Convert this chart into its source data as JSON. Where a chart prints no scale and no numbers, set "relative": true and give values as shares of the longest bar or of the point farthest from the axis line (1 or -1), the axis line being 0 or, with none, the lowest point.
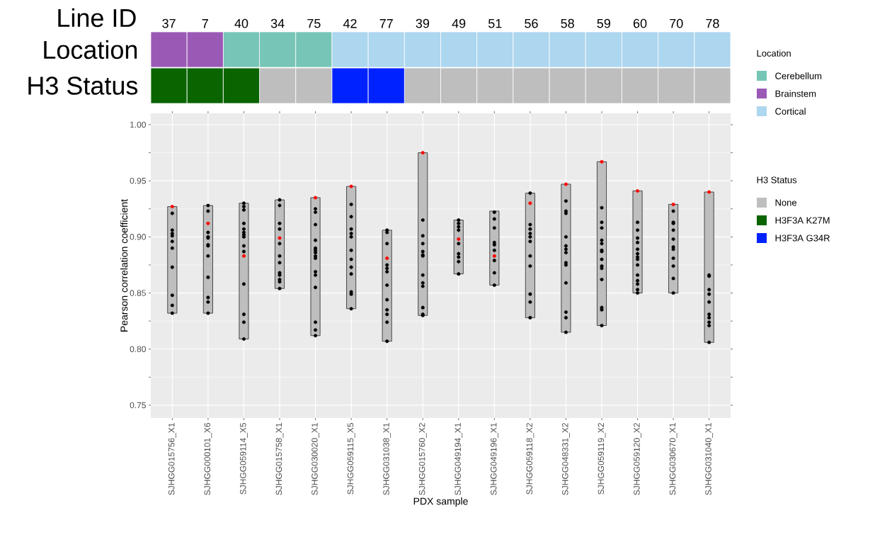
{
  "chart_data": [
    {
      "type": "bar",
      "relative": true,
      "x2label": "Line ID",
      "ylabel": "Location",
      "categories": [
        "37",
        "7",
        "40",
        "34",
        "75",
        "42",
        "77",
        "39",
        "49",
        "51",
        "56",
        "58",
        "59",
        "60",
        "70",
        "78"
      ],
      "legend": "right",
      "legend_title": "Location",
      "series": [
        {
          "name": "Cerebellum",
          "color": "#76c5b6",
          "values": [
            null,
            null,
            1,
            1,
            1,
            null,
            null,
            null,
            null,
            null,
            null,
            null,
            null,
            null,
            null,
            null
          ]
        },
        {
          "name": "Brainstem",
          "color": "#9b59b6",
          "values": [
            1,
            1,
            null,
            null,
            null,
            null,
            null,
            null,
            null,
            null,
            null,
            null,
            null,
            null,
            null,
            null
          ]
        },
        {
          "name": "Cortical",
          "color": "#add6ef",
          "values": [
            null,
            null,
            null,
            null,
            null,
            1,
            1,
            1,
            1,
            1,
            1,
            1,
            1,
            1,
            1,
            1
          ]
        }
      ]
    },
    {
      "type": "bar",
      "relative": true,
      "tick_labels": false,
      "ylabel": "H3 Status",
      "categories": [
        "37",
        "7",
        "40",
        "34",
        "75",
        "42",
        "77",
        "39",
        "49",
        "51",
        "56",
        "58",
        "59",
        "60",
        "70",
        "78"
      ],
      "legend": "right",
      "legend_title": "H3 Status",
      "series": [
        {
          "name": "None",
          "color": "#bebebe",
          "values": [
            null,
            null,
            null,
            1,
            1,
            null,
            null,
            1,
            1,
            1,
            1,
            1,
            1,
            1,
            1,
            1
          ]
        },
        {
          "name": "H3F3A K27M",
          "color": "#0a6400",
          "values": [
            1,
            1,
            1,
            null,
            null,
            null,
            null,
            null,
            null,
            null,
            null,
            null,
            null,
            null,
            null,
            null
          ]
        },
        {
          "name": "H3F3A G34R",
          "color": "#0022ff",
          "values": [
            null,
            null,
            null,
            null,
            null,
            1,
            1,
            null,
            null,
            null,
            null,
            null,
            null,
            null,
            null,
            null
          ]
        }
      ]
    },
    {
      "type": "bar",
      "xlabel": "PDX sample",
      "ylabel": "Pearson correlation coefficient",
      "grid": true,
      "categories": [
        "SJHGG015756_X1",
        "SJHGG000101_X6",
        "SJHGG059114_X5",
        "SJHGG015758_X1",
        "SJHGG030020_X1",
        "SJHGG059115_X5",
        "SJHGG031038_X1",
        "SJHGG015760_X2",
        "SJHGG049194_X1",
        "SJHGG049196_X1",
        "SJHGG059118_X2",
        "SJHGG048331_X2",
        "SJHGG059119_X2",
        "SJHGG059120_X2",
        "SJHGG030670_X1",
        "SJHGG031040_X1"
      ],
      "ylim": [
        0.7386,
        1.0101
      ],
      "yticks": [
        0.75,
        {
          "value": 0.8,
          "label": "0.80"
        },
        0.85,
        {
          "value": 0.9,
          "label": "0.90"
        },
        0.95,
        {
          "value": 1.0,
          "label": "1.00"
        }
      ],
      "series": [
        {
          "type": "bar",
          "color": "#bebebe",
          "base": [
            0.832,
            0.832,
            0.809,
            0.854,
            0.812,
            0.836,
            0.807,
            0.83,
            0.867,
            0.857,
            0.828,
            0.815,
            0.821,
            0.85,
            0.85,
            0.806
          ],
          "values": [
            0.095,
            0.096,
            0.121,
            0.079,
            0.123,
            0.109,
            0.099,
            0.145,
            0.048,
            0.066,
            0.111,
            0.132,
            0.146,
            0.091,
            0.079,
            0.134
          ]
        },
        {
          "type": "scatter",
          "color": "#000000",
          "x": [
            "SJHGG015756_X1",
            "SJHGG015756_X1",
            "SJHGG015756_X1",
            "SJHGG015756_X1",
            "SJHGG015756_X1",
            "SJHGG015756_X1",
            "SJHGG015756_X1",
            "SJHGG015756_X1",
            "SJHGG015756_X1",
            "SJHGG015756_X1",
            "SJHGG000101_X6",
            "SJHGG000101_X6",
            "SJHGG000101_X6",
            "SJHGG000101_X6",
            "SJHGG000101_X6",
            "SJHGG000101_X6",
            "SJHGG000101_X6",
            "SJHGG000101_X6",
            "SJHGG000101_X6",
            "SJHGG000101_X6",
            "SJHGG000101_X6",
            "SJHGG000101_X6",
            "SJHGG059114_X5",
            "SJHGG059114_X5",
            "SJHGG059114_X5",
            "SJHGG059114_X5",
            "SJHGG059114_X5",
            "SJHGG059114_X5",
            "SJHGG059114_X5",
            "SJHGG059114_X5",
            "SJHGG059114_X5",
            "SJHGG059114_X5",
            "SJHGG059114_X5",
            "SJHGG059114_X5",
            "SJHGG059114_X5",
            "SJHGG059114_X5",
            "SJHGG015758_X1",
            "SJHGG015758_X1",
            "SJHGG015758_X1",
            "SJHGG015758_X1",
            "SJHGG015758_X1",
            "SJHGG015758_X1",
            "SJHGG015758_X1",
            "SJHGG015758_X1",
            "SJHGG015758_X1",
            "SJHGG015758_X1",
            "SJHGG015758_X1",
            "SJHGG015758_X1",
            "SJHGG030020_X1",
            "SJHGG030020_X1",
            "SJHGG030020_X1",
            "SJHGG030020_X1",
            "SJHGG030020_X1",
            "SJHGG030020_X1",
            "SJHGG030020_X1",
            "SJHGG030020_X1",
            "SJHGG030020_X1",
            "SJHGG030020_X1",
            "SJHGG030020_X1",
            "SJHGG030020_X1",
            "SJHGG030020_X1",
            "SJHGG030020_X1",
            "SJHGG030020_X1",
            "SJHGG059115_X5",
            "SJHGG059115_X5",
            "SJHGG059115_X5",
            "SJHGG059115_X5",
            "SJHGG059115_X5",
            "SJHGG059115_X5",
            "SJHGG059115_X5",
            "SJHGG059115_X5",
            "SJHGG059115_X5",
            "SJHGG059115_X5",
            "SJHGG059115_X5",
            "SJHGG059115_X5",
            "SJHGG031038_X1",
            "SJHGG031038_X1",
            "SJHGG031038_X1",
            "SJHGG031038_X1",
            "SJHGG031038_X1",
            "SJHGG031038_X1",
            "SJHGG031038_X1",
            "SJHGG031038_X1",
            "SJHGG031038_X1",
            "SJHGG031038_X1",
            "SJHGG031038_X1",
            "SJHGG031038_X1",
            "SJHGG015760_X2",
            "SJHGG015760_X2",
            "SJHGG015760_X2",
            "SJHGG015760_X2",
            "SJHGG015760_X2",
            "SJHGG015760_X2",
            "SJHGG015760_X2",
            "SJHGG015760_X2",
            "SJHGG015760_X2",
            "SJHGG015760_X2",
            "SJHGG015760_X2",
            "SJHGG015760_X2",
            "SJHGG049194_X1",
            "SJHGG049194_X1",
            "SJHGG049194_X1",
            "SJHGG049194_X1",
            "SJHGG049194_X1",
            "SJHGG049194_X1",
            "SJHGG049194_X1",
            "SJHGG049194_X1",
            "SJHGG049194_X1",
            "SJHGG049196_X1",
            "SJHGG049196_X1",
            "SJHGG049196_X1",
            "SJHGG049196_X1",
            "SJHGG049196_X1",
            "SJHGG049196_X1",
            "SJHGG049196_X1",
            "SJHGG049196_X1",
            "SJHGG049196_X1",
            "SJHGG059118_X2",
            "SJHGG059118_X2",
            "SJHGG059118_X2",
            "SJHGG059118_X2",
            "SJHGG059118_X2",
            "SJHGG059118_X2",
            "SJHGG059118_X2",
            "SJHGG059118_X2",
            "SJHGG059118_X2",
            "SJHGG059118_X2",
            "SJHGG059118_X2",
            "SJHGG048331_X2",
            "SJHGG048331_X2",
            "SJHGG048331_X2",
            "SJHGG048331_X2",
            "SJHGG048331_X2",
            "SJHGG048331_X2",
            "SJHGG048331_X2",
            "SJHGG048331_X2",
            "SJHGG048331_X2",
            "SJHGG048331_X2",
            "SJHGG048331_X2",
            "SJHGG048331_X2",
            "SJHGG048331_X2",
            "SJHGG059119_X2",
            "SJHGG059119_X2",
            "SJHGG059119_X2",
            "SJHGG059119_X2",
            "SJHGG059119_X2",
            "SJHGG059119_X2",
            "SJHGG059119_X2",
            "SJHGG059119_X2",
            "SJHGG059119_X2",
            "SJHGG059119_X2",
            "SJHGG059119_X2",
            "SJHGG059119_X2",
            "SJHGG059119_X2",
            "SJHGG059119_X2",
            "SJHGG059120_X2",
            "SJHGG059120_X2",
            "SJHGG059120_X2",
            "SJHGG059120_X2",
            "SJHGG059120_X2",
            "SJHGG059120_X2",
            "SJHGG059120_X2",
            "SJHGG059120_X2",
            "SJHGG059120_X2",
            "SJHGG059120_X2",
            "SJHGG059120_X2",
            "SJHGG059120_X2",
            "SJHGG059120_X2",
            "SJHGG059120_X2",
            "SJHGG030670_X1",
            "SJHGG030670_X1",
            "SJHGG030670_X1",
            "SJHGG030670_X1",
            "SJHGG030670_X1",
            "SJHGG030670_X1",
            "SJHGG030670_X1",
            "SJHGG030670_X1",
            "SJHGG030670_X1",
            "SJHGG030670_X1",
            "SJHGG030670_X1",
            "SJHGG031040_X1",
            "SJHGG031040_X1",
            "SJHGG031040_X1",
            "SJHGG031040_X1",
            "SJHGG031040_X1",
            "SJHGG031040_X1",
            "SJHGG031040_X1",
            "SJHGG031040_X1",
            "SJHGG031040_X1",
            "SJHGG031040_X1"
          ],
          "values": [
            0.921,
            0.906,
            0.903,
            0.901,
            0.896,
            0.89,
            0.873,
            0.848,
            0.839,
            0.832,
            0.928,
            0.923,
            0.904,
            0.9,
            0.899,
            0.893,
            0.892,
            0.883,
            0.864,
            0.846,
            0.842,
            0.832,
            0.93,
            0.927,
            0.924,
            0.912,
            0.907,
            0.904,
            0.902,
            0.9,
            0.892,
            0.887,
            0.858,
            0.831,
            0.824,
            0.809,
            0.933,
            0.928,
            0.912,
            0.907,
            0.894,
            0.883,
            0.877,
            0.868,
            0.866,
            0.862,
            0.86,
            0.854,
            0.925,
            0.922,
            0.911,
            0.897,
            0.89,
            0.888,
            0.886,
            0.883,
            0.881,
            0.869,
            0.866,
            0.855,
            0.824,
            0.817,
            0.812,
            0.929,
            0.918,
            0.907,
            0.903,
            0.9,
            0.888,
            0.88,
            0.873,
            0.867,
            0.851,
            0.849,
            0.836,
            0.906,
            0.904,
            0.894,
            0.875,
            0.872,
            0.869,
            0.857,
            0.844,
            0.835,
            0.831,
            0.824,
            0.807,
            0.915,
            0.901,
            0.894,
            0.887,
            0.884,
            0.883,
            0.866,
            0.859,
            0.856,
            0.837,
            0.831,
            0.83,
            0.915,
            0.912,
            0.909,
            0.906,
            0.894,
            0.885,
            0.882,
            0.878,
            0.867,
            0.922,
            0.916,
            0.908,
            0.895,
            0.893,
            0.888,
            0.879,
            0.868,
            0.857,
            0.939,
            0.911,
            0.907,
            0.903,
            0.9,
            0.896,
            0.883,
            0.874,
            0.849,
            0.842,
            0.828,
            0.932,
            0.923,
            0.921,
            0.9,
            0.892,
            0.889,
            0.886,
            0.877,
            0.875,
            0.859,
            0.833,
            0.828,
            0.815,
            0.926,
            0.913,
            0.908,
            0.897,
            0.894,
            0.888,
            0.887,
            0.88,
            0.874,
            0.872,
            0.862,
            0.837,
            0.835,
            0.821,
            0.913,
            0.906,
            0.899,
            0.895,
            0.889,
            0.885,
            0.882,
            0.88,
            0.875,
            0.866,
            0.861,
            0.858,
            0.853,
            0.85,
            0.923,
            0.913,
            0.912,
            0.906,
            0.898,
            0.891,
            0.889,
            0.881,
            0.874,
            0.863,
            0.85,
            0.866,
            0.865,
            0.853,
            0.849,
            0.842,
            0.831,
            0.828,
            0.824,
            0.821,
            0.806
          ]
        },
        {
          "type": "scatter",
          "color": "#ff0000",
          "values": [
            0.927,
            0.912,
            0.883,
            0.899,
            0.935,
            0.945,
            0.881,
            0.975,
            0.898,
            0.883,
            0.93,
            0.947,
            0.967,
            0.941,
            0.929,
            0.94
          ]
        }
      ]
    }
  ]
}
